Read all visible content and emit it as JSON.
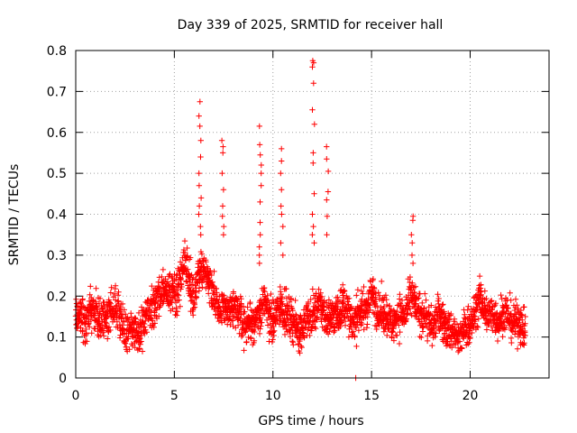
{
  "chart_data": {
    "type": "scatter",
    "title": "Day 339 of 2025, SRMTID for receiver hall",
    "xlabel": "GPS time / hours",
    "ylabel": "SRMTID / TECUs",
    "xlim": [
      0,
      24
    ],
    "ylim": [
      0,
      0.8
    ],
    "xticks": [
      0,
      5,
      10,
      15,
      20
    ],
    "xtick_labels": [
      "0",
      "5",
      "10",
      "15",
      "20"
    ],
    "yticks": [
      0,
      0.1,
      0.2,
      0.3,
      0.4,
      0.5,
      0.6,
      0.7,
      0.8
    ],
    "ytick_labels": [
      "0",
      "0.1",
      "0.2",
      "0.3",
      "0.4",
      "0.5",
      "0.6",
      "0.7",
      "0.8"
    ],
    "grid": true,
    "marker": "+",
    "series_color": "#ff0000",
    "x_data_end": 22.8,
    "baseline": [
      [
        0.0,
        0.14
      ],
      [
        0.5,
        0.15
      ],
      [
        1.0,
        0.16
      ],
      [
        1.5,
        0.14
      ],
      [
        2.0,
        0.18
      ],
      [
        2.5,
        0.12
      ],
      [
        3.0,
        0.11
      ],
      [
        3.5,
        0.13
      ],
      [
        4.0,
        0.18
      ],
      [
        4.5,
        0.22
      ],
      [
        5.0,
        0.2
      ],
      [
        5.5,
        0.28
      ],
      [
        6.0,
        0.2
      ],
      [
        6.5,
        0.28
      ],
      [
        7.0,
        0.2
      ],
      [
        7.5,
        0.16
      ],
      [
        8.0,
        0.17
      ],
      [
        8.5,
        0.14
      ],
      [
        9.0,
        0.13
      ],
      [
        9.5,
        0.18
      ],
      [
        10.0,
        0.14
      ],
      [
        10.5,
        0.18
      ],
      [
        11.0,
        0.13
      ],
      [
        11.5,
        0.12
      ],
      [
        12.0,
        0.16
      ],
      [
        12.5,
        0.17
      ],
      [
        13.0,
        0.14
      ],
      [
        13.5,
        0.18
      ],
      [
        14.0,
        0.14
      ],
      [
        14.5,
        0.16
      ],
      [
        15.0,
        0.2
      ],
      [
        15.5,
        0.16
      ],
      [
        16.0,
        0.14
      ],
      [
        16.5,
        0.15
      ],
      [
        17.0,
        0.19
      ],
      [
        17.5,
        0.16
      ],
      [
        18.0,
        0.13
      ],
      [
        18.5,
        0.15
      ],
      [
        19.0,
        0.11
      ],
      [
        19.5,
        0.1
      ],
      [
        20.0,
        0.13
      ],
      [
        20.5,
        0.19
      ],
      [
        21.0,
        0.15
      ],
      [
        21.5,
        0.15
      ],
      [
        22.0,
        0.15
      ],
      [
        22.5,
        0.13
      ],
      [
        22.8,
        0.12
      ]
    ],
    "spikes": [
      {
        "x": 6.3,
        "values": [
          0.675,
          0.64,
          0.615,
          0.58,
          0.54,
          0.5,
          0.47,
          0.44,
          0.42,
          0.4,
          0.37,
          0.35
        ]
      },
      {
        "x": 7.45,
        "values": [
          0.58,
          0.565,
          0.55,
          0.5,
          0.46,
          0.42,
          0.395,
          0.37,
          0.35
        ]
      },
      {
        "x": 9.35,
        "values": [
          0.615,
          0.57,
          0.545,
          0.52,
          0.5,
          0.47,
          0.43,
          0.38,
          0.35,
          0.32,
          0.3,
          0.28
        ]
      },
      {
        "x": 10.45,
        "values": [
          0.56,
          0.53,
          0.5,
          0.46,
          0.42,
          0.4,
          0.37,
          0.33,
          0.3
        ]
      },
      {
        "x": 12.05,
        "values": [
          0.775,
          0.77,
          0.76,
          0.72,
          0.655,
          0.62,
          0.55,
          0.525,
          0.45,
          0.4,
          0.37,
          0.35,
          0.33
        ]
      },
      {
        "x": 12.75,
        "values": [
          0.565,
          0.535,
          0.505,
          0.455,
          0.435,
          0.395,
          0.35
        ]
      },
      {
        "x": 17.05,
        "values": [
          0.395,
          0.385,
          0.35,
          0.33,
          0.3,
          0.28
        ]
      }
    ],
    "lone_points": [
      {
        "x": 14.2,
        "y": 0.0
      }
    ]
  }
}
